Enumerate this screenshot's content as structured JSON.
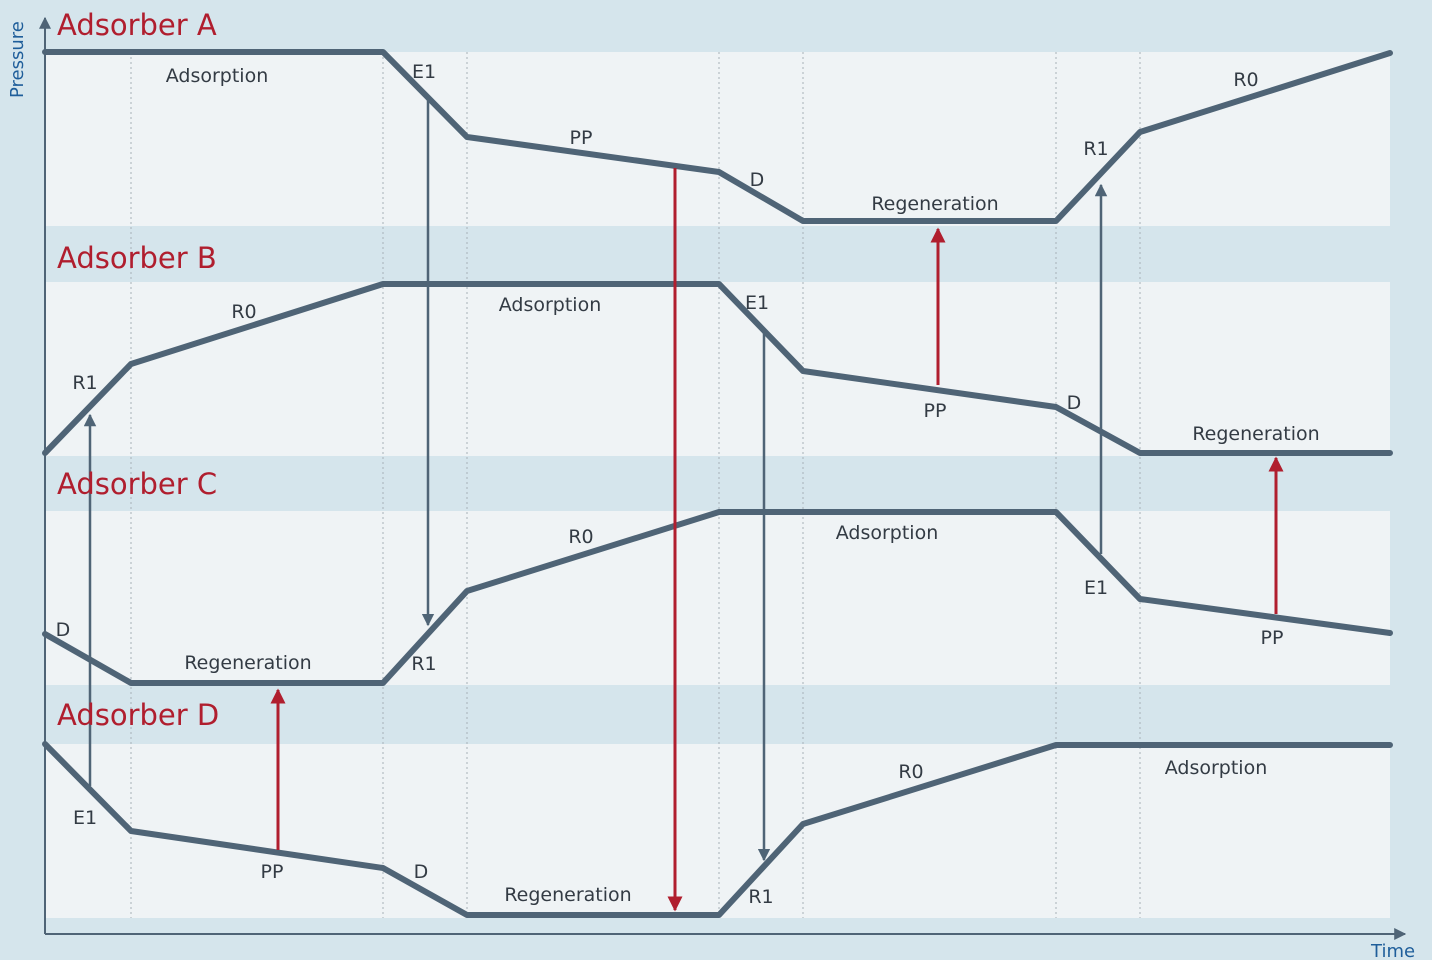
{
  "axes": {
    "y_label": "Pressure",
    "x_label": "Time"
  },
  "colors": {
    "background": "#d5e5ec",
    "panel": "#eff3f5",
    "curve": "#4f6476",
    "arrow_gray": "#4f6476",
    "arrow_red": "#b01e2e",
    "title": "#b01e2e",
    "axis_label": "#1f5e9a"
  },
  "adsorbers": [
    {
      "id": "a",
      "title": "Adsorber A",
      "labels": [
        "Adsorption",
        "E1",
        "PP",
        "D",
        "Regeneration",
        "R1",
        "R0"
      ]
    },
    {
      "id": "b",
      "title": "Adsorber B",
      "labels": [
        "R1",
        "R0",
        "Adsorption",
        "E1",
        "PP",
        "D",
        "Regeneration"
      ]
    },
    {
      "id": "c",
      "title": "Adsorber C",
      "labels": [
        "D",
        "Regeneration",
        "R1",
        "R0",
        "Adsorption",
        "E1",
        "PP"
      ]
    },
    {
      "id": "d",
      "title": "Adsorber D",
      "labels": [
        "E1",
        "PP",
        "D",
        "Regeneration",
        "R1",
        "R0",
        "Adsorption"
      ]
    }
  ]
}
